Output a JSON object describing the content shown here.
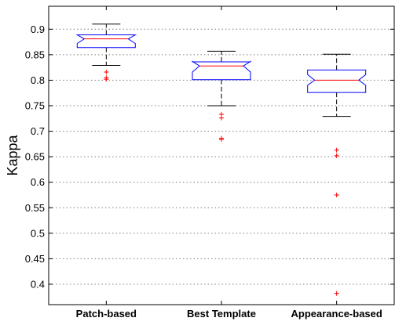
{
  "chart_data": {
    "type": "boxplot",
    "title": "",
    "xlabel": "",
    "ylabel": "Kappa",
    "ylim": [
      0.36,
      0.945
    ],
    "yticks": [
      0.4,
      0.45,
      0.5,
      0.55,
      0.6,
      0.65,
      0.7,
      0.75,
      0.8,
      0.85,
      0.9
    ],
    "ytick_labels": [
      "0.4",
      "0.45",
      "0.5",
      "0.55",
      "0.6",
      "0.65",
      "0.7",
      "0.75",
      "0.8",
      "0.85",
      "0.9"
    ],
    "grid": "horizontal-dotted",
    "notched": true,
    "categories": [
      "Patch-based",
      "Best Template",
      "Appearance-based"
    ],
    "boxes": [
      {
        "category": "Patch-based",
        "whisker_low": 0.829,
        "q1": 0.864,
        "median": 0.881,
        "q3": 0.889,
        "whisker_high": 0.91,
        "notch_low": 0.872,
        "notch_high": 0.889,
        "outliers": [
          0.816,
          0.805,
          0.802
        ]
      },
      {
        "category": "Best Template",
        "whisker_low": 0.75,
        "q1": 0.801,
        "median": 0.828,
        "q3": 0.836,
        "whisker_high": 0.857,
        "notch_low": 0.816,
        "notch_high": 0.837,
        "outliers": [
          0.733,
          0.726,
          0.686,
          0.684
        ]
      },
      {
        "category": "Appearance-based",
        "whisker_low": 0.729,
        "q1": 0.776,
        "median": 0.8,
        "q3": 0.82,
        "whisker_high": 0.851,
        "notch_low": 0.79,
        "notch_high": 0.811,
        "outliers": [
          0.663,
          0.652,
          0.575,
          0.382
        ]
      }
    ],
    "colors": {
      "box": "#0000ff",
      "median": "#ff0000",
      "whisker": "#000000",
      "outlier": "#ff0000",
      "grid": "#7f7f7f"
    }
  }
}
